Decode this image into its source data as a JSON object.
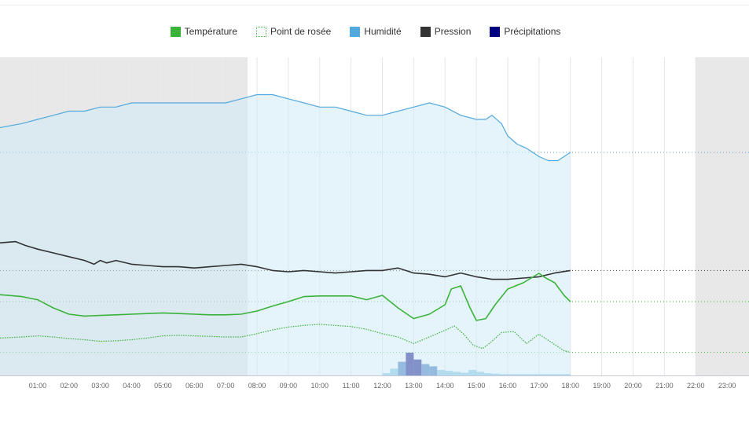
{
  "chart_data": {
    "type": "line",
    "title": "",
    "xlabel": "",
    "ylabel": "",
    "legend_position": "top-center",
    "grid": true,
    "x_range_hours": [
      -0.2,
      23.7
    ],
    "night_shading": [
      [
        -0.2,
        7.7
      ],
      [
        22.0,
        23.7
      ]
    ],
    "data_end_hour": 18.0,
    "x_ticks": [
      "01:00",
      "02:00",
      "03:00",
      "04:00",
      "05:00",
      "06:00",
      "07:00",
      "08:00",
      "09:00",
      "10:00",
      "11:00",
      "12:00",
      "13:00",
      "14:00",
      "15:00",
      "16:00",
      "17:00",
      "18:00",
      "19:00",
      "20:00",
      "21:00",
      "22:00",
      "23:00"
    ],
    "series": [
      {
        "name": "Température",
        "key": "temperature",
        "style": "solid",
        "color": "#3bb33b",
        "fill": false,
        "x": [
          -0.2,
          0.5,
          1.0,
          1.5,
          2.0,
          2.5,
          3.0,
          3.5,
          4.0,
          4.5,
          5.0,
          5.5,
          6.0,
          6.5,
          7.0,
          7.5,
          8.0,
          8.5,
          9.0,
          9.5,
          10.0,
          10.5,
          11.0,
          11.5,
          12.0,
          12.5,
          13.0,
          13.5,
          14.0,
          14.2,
          14.5,
          14.8,
          15.0,
          15.3,
          15.6,
          16.0,
          16.5,
          17.0,
          17.2,
          17.5,
          17.8,
          18.0
        ],
        "y": [
          38.6,
          38.3,
          37.8,
          36.5,
          35.5,
          35.2,
          35.3,
          35.4,
          35.5,
          35.6,
          35.7,
          35.6,
          35.5,
          35.4,
          35.4,
          35.5,
          36.0,
          36.8,
          37.5,
          38.3,
          38.4,
          38.4,
          38.4,
          37.8,
          38.5,
          36.5,
          34.8,
          35.5,
          37.0,
          39.5,
          40.0,
          36.5,
          34.5,
          34.8,
          37.0,
          39.5,
          40.5,
          42.0,
          41.3,
          40.5,
          38.5,
          37.5
        ]
      },
      {
        "name": "Point de rosée",
        "key": "dew_point",
        "style": "dotted",
        "color": "#3bb33b",
        "fill": false,
        "x": [
          -0.2,
          0.5,
          1.0,
          1.5,
          2.0,
          2.5,
          3.0,
          3.5,
          4.0,
          4.5,
          5.0,
          5.5,
          6.0,
          6.5,
          7.0,
          7.5,
          8.0,
          8.5,
          9.0,
          9.5,
          10.0,
          10.5,
          11.0,
          11.5,
          12.0,
          12.5,
          13.0,
          13.5,
          14.0,
          14.3,
          14.6,
          14.9,
          15.2,
          15.5,
          15.8,
          16.2,
          16.6,
          17.0,
          17.4,
          17.8,
          18.0
        ],
        "y": [
          2.8,
          3.0,
          3.2,
          3.0,
          2.7,
          2.5,
          2.2,
          2.3,
          2.5,
          2.8,
          3.2,
          3.3,
          3.2,
          3.1,
          3.0,
          3.0,
          3.6,
          4.3,
          4.8,
          5.1,
          5.3,
          5.1,
          4.9,
          4.4,
          3.6,
          3.0,
          1.8,
          3.0,
          4.2,
          5.0,
          3.5,
          1.5,
          0.9,
          2.2,
          3.8,
          4.0,
          1.8,
          3.5,
          2.0,
          0.5,
          0.2
        ]
      },
      {
        "name": "Humidité",
        "key": "humidity",
        "style": "solid",
        "color": "#52a9dd",
        "fill": true,
        "x": [
          -0.2,
          0.5,
          1.0,
          1.5,
          2.0,
          2.5,
          3.0,
          3.5,
          4.0,
          4.5,
          5.0,
          5.5,
          6.0,
          6.5,
          7.0,
          7.5,
          8.0,
          8.5,
          9.0,
          9.5,
          10.0,
          10.5,
          11.0,
          11.5,
          12.0,
          12.5,
          13.0,
          13.5,
          14.0,
          14.5,
          15.0,
          15.3,
          15.5,
          15.8,
          16.0,
          16.3,
          16.6,
          17.0,
          17.3,
          17.6,
          18.0
        ],
        "y": [
          90,
          91,
          92,
          93,
          94,
          94,
          95,
          95,
          96,
          96,
          96,
          96,
          96,
          96,
          96,
          97,
          98,
          98,
          97,
          96,
          95,
          95,
          94,
          93,
          93,
          94,
          95,
          96,
          95,
          93,
          92,
          92,
          93,
          91,
          88,
          86,
          85,
          83,
          82,
          82,
          84
        ]
      },
      {
        "name": "Pression",
        "key": "pressure",
        "style": "solid",
        "color": "#333333",
        "fill": false,
        "x": [
          -0.2,
          0.3,
          0.6,
          1.0,
          1.5,
          2.0,
          2.5,
          2.8,
          3.0,
          3.2,
          3.5,
          4.0,
          4.5,
          5.0,
          5.5,
          6.0,
          6.5,
          7.0,
          7.5,
          8.0,
          8.5,
          9.0,
          9.5,
          10.0,
          10.5,
          11.0,
          11.5,
          12.0,
          12.5,
          13.0,
          13.5,
          14.0,
          14.5,
          15.0,
          15.5,
          16.0,
          16.5,
          17.0,
          17.5,
          18.0
        ],
        "y": [
          1018.8,
          1018.9,
          1018.6,
          1018.3,
          1018.0,
          1017.7,
          1017.4,
          1017.1,
          1017.4,
          1017.2,
          1017.4,
          1017.1,
          1017.0,
          1016.9,
          1016.9,
          1016.8,
          1016.9,
          1017.0,
          1017.1,
          1016.9,
          1016.6,
          1016.5,
          1016.6,
          1016.5,
          1016.4,
          1016.5,
          1016.6,
          1016.6,
          1016.8,
          1016.4,
          1016.3,
          1016.1,
          1016.4,
          1016.1,
          1015.9,
          1015.9,
          1016.0,
          1016.1,
          1016.4,
          1016.6
        ]
      },
      {
        "name": "Précipitations",
        "key": "precipitation",
        "style": "bars",
        "color": "#000080",
        "fill": true,
        "x": [
          12.0,
          12.25,
          12.5,
          12.75,
          13.0,
          13.25,
          13.5,
          13.75,
          14.0,
          14.25,
          14.5,
          14.75,
          15.0,
          15.25,
          15.5,
          15.75,
          16.0,
          16.25,
          16.5,
          16.75,
          17.0,
          17.25,
          17.5,
          17.75
        ],
        "y": [
          0.05,
          0.15,
          0.3,
          0.5,
          0.35,
          0.25,
          0.2,
          0.12,
          0.1,
          0.08,
          0.06,
          0.12,
          0.08,
          0.05,
          0.04,
          0.03,
          0.03,
          0.03,
          0.03,
          0.03,
          0.03,
          0.03,
          0.03,
          0.03
        ]
      }
    ]
  }
}
